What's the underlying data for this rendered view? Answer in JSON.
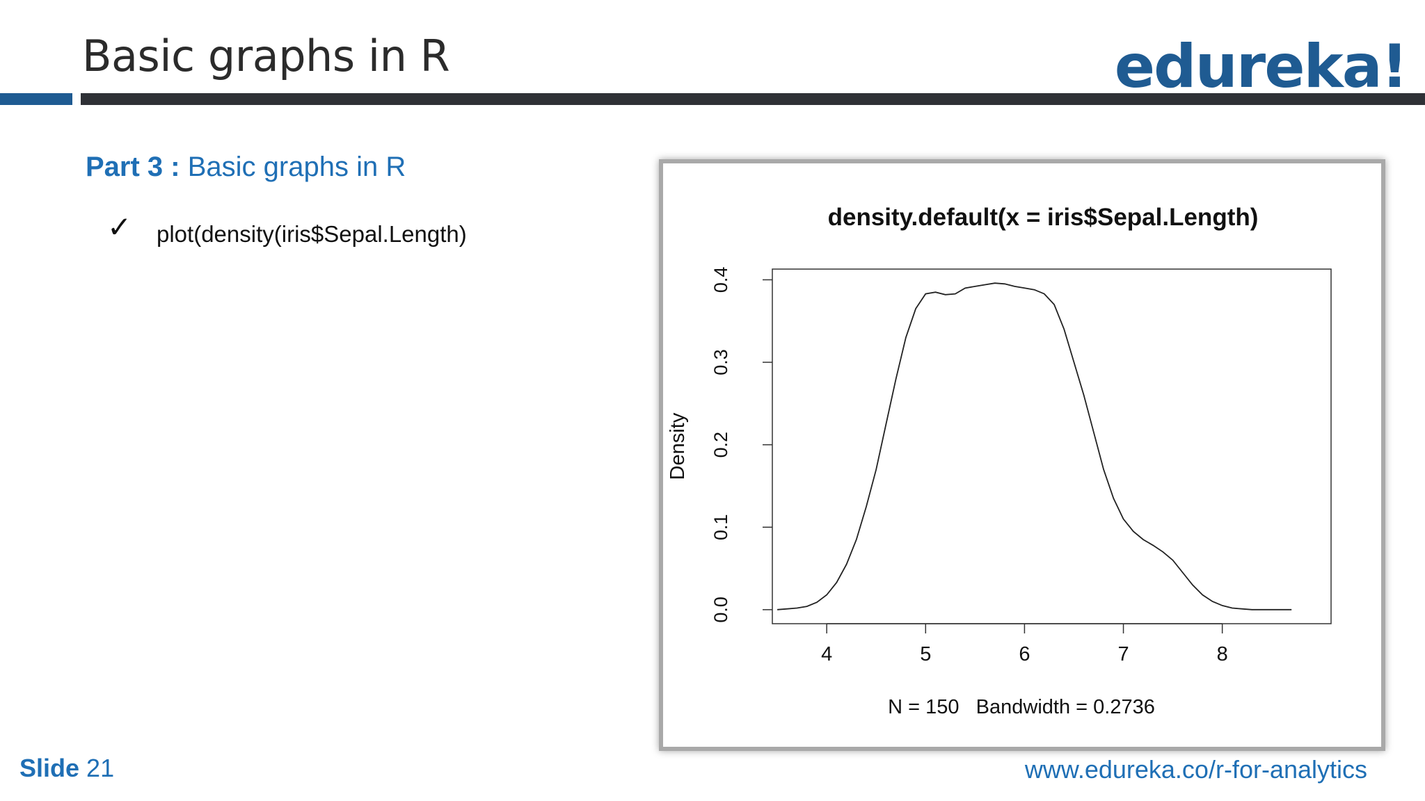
{
  "slide": {
    "title": "Basic graphs in R",
    "logo_text": "edureka!",
    "part_label": "Part 3 :",
    "part_title": "Basic graphs in R",
    "bullet_mark": "✓",
    "bullet_text": "plot(density(iris$Sepal.Length)",
    "slide_label": "Slide",
    "slide_number": "21",
    "footer_url": "www.edureka.co/r-for-analytics",
    "colors": {
      "brand_blue": "#1f5b92",
      "heading_blue": "#1f6fb5",
      "rule_dark": "#2f3136"
    }
  },
  "chart_data": {
    "type": "line",
    "title": "density.default(x = iris$Sepal.Length)",
    "xlabel": "N = 150   Bandwidth = 0.2736",
    "ylabel": "Density",
    "xlim": [
      3.45,
      9.1
    ],
    "ylim": [
      -0.017,
      0.413
    ],
    "xticks": [
      "4",
      "5",
      "6",
      "7",
      "8"
    ],
    "yticks": [
      "0.0",
      "0.1",
      "0.2",
      "0.3",
      "0.4"
    ],
    "grid": false,
    "series": [
      {
        "x": [
          3.5,
          3.6,
          3.7,
          3.8,
          3.9,
          4.0,
          4.1,
          4.2,
          4.3,
          4.4,
          4.5,
          4.6,
          4.7,
          4.8,
          4.9,
          5.0,
          5.1,
          5.2,
          5.3,
          5.4,
          5.5,
          5.6,
          5.7,
          5.8,
          5.9,
          6.0,
          6.1,
          6.2,
          6.3,
          6.4,
          6.5,
          6.6,
          6.7,
          6.8,
          6.9,
          7.0,
          7.1,
          7.2,
          7.3,
          7.4,
          7.5,
          7.6,
          7.7,
          7.8,
          7.9,
          8.0,
          8.1,
          8.2,
          8.3,
          8.4,
          8.5,
          8.6,
          8.7
        ],
        "y": [
          0.0,
          0.001,
          0.002,
          0.004,
          0.009,
          0.018,
          0.033,
          0.055,
          0.085,
          0.125,
          0.17,
          0.225,
          0.28,
          0.33,
          0.365,
          0.383,
          0.385,
          0.382,
          0.383,
          0.39,
          0.392,
          0.394,
          0.396,
          0.395,
          0.392,
          0.39,
          0.388,
          0.383,
          0.37,
          0.34,
          0.3,
          0.26,
          0.215,
          0.17,
          0.135,
          0.11,
          0.095,
          0.085,
          0.078,
          0.07,
          0.06,
          0.045,
          0.03,
          0.018,
          0.01,
          0.005,
          0.002,
          0.001,
          0.0,
          0.0,
          0.0,
          0.0,
          0.0
        ]
      }
    ]
  }
}
